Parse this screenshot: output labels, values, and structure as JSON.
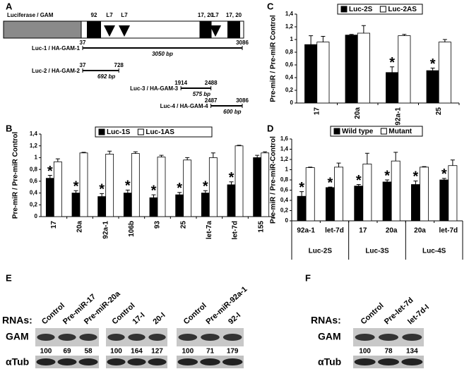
{
  "panel_labels": [
    "A",
    "B",
    "C",
    "D",
    "E",
    "F"
  ],
  "diagram": {
    "label": "Luciferase / GAM",
    "features": [
      "92",
      "L7",
      "L7",
      "17, 20",
      "L7",
      "17, 20"
    ],
    "constructs": [
      {
        "name": "Luc-1 / HA-GAM-1",
        "start": 37,
        "end": 3086,
        "length": "3050 bp"
      },
      {
        "name": "Luc-2 / HA-GAM-2",
        "start": 37,
        "end": 728,
        "length": "692 bp"
      },
      {
        "name": "Luc-3 / HA-GAM-3",
        "start": 1914,
        "end": 2488,
        "length": "575 bp"
      },
      {
        "name": "Luc-4 / HA-GAM-4",
        "start": 2487,
        "end": 3086,
        "length": "600 bp"
      }
    ]
  },
  "chart_data": [
    {
      "type": "bar",
      "y_label": "Pre-miR / Pre-miR Control",
      "categories": [
        "17",
        "20a",
        "92a-1",
        "106b",
        "93",
        "25",
        "let-7a",
        "let-7d",
        "155"
      ],
      "series": [
        {
          "name": "Luc-1S",
          "color": "#000000",
          "values": [
            0.65,
            0.4,
            0.34,
            0.4,
            0.32,
            0.37,
            0.4,
            0.54,
            1.0
          ],
          "errors": [
            0.05,
            0.04,
            0.05,
            0.05,
            0.05,
            0.04,
            0.04,
            0.05,
            0.04
          ],
          "annotations": [
            "*",
            "*",
            "*",
            "*",
            "*",
            "*",
            "*",
            "*",
            null
          ]
        },
        {
          "name": "Luc-1AS",
          "color": "#ffffff",
          "values": [
            0.93,
            1.08,
            1.06,
            1.07,
            1.01,
            0.96,
            1.0,
            1.2,
            1.08
          ],
          "errors": [
            0.05,
            0.01,
            0.05,
            0.03,
            0.03,
            0.04,
            0.08,
            0.01,
            0.02
          ]
        }
      ],
      "ylim": [
        0,
        1.4
      ],
      "yticks": [
        0,
        {
          "value": 0.2,
          "label": "0,2"
        },
        {
          "value": 0.4,
          "label": "0,4"
        },
        {
          "value": 0.6,
          "label": "0,6"
        },
        {
          "value": 0.8,
          "label": "0,8"
        },
        1,
        {
          "value": 1.2,
          "label": "1,2"
        },
        {
          "value": 1.4,
          "label": "1,4"
        }
      ]
    },
    {
      "type": "bar",
      "y_label": "Pre-miR / Pre-miR Control",
      "categories": [
        "17",
        "20a",
        "92a-1",
        "25"
      ],
      "series": [
        {
          "name": "Luc-2S",
          "color": "#000000",
          "values": [
            0.92,
            1.07,
            0.48,
            0.51
          ],
          "errors": [
            0.14,
            0.01,
            0.09,
            0.04
          ],
          "annotations": [
            null,
            null,
            "*",
            "*"
          ]
        },
        {
          "name": "Luc-2AS",
          "color": "#ffffff",
          "values": [
            0.96,
            1.1,
            1.06,
            0.96
          ],
          "errors": [
            0.09,
            0.12,
            0.02,
            0.04
          ]
        }
      ],
      "ylim": [
        0,
        1.4
      ],
      "yticks": [
        0,
        {
          "value": 0.2,
          "label": "0,2"
        },
        {
          "value": 0.4,
          "label": "0,4"
        },
        {
          "value": 0.6,
          "label": "0,6"
        },
        {
          "value": 0.8,
          "label": "0,8"
        },
        1,
        {
          "value": 1.2,
          "label": "1,2"
        },
        {
          "value": 1.4,
          "label": "1,4"
        }
      ]
    },
    {
      "type": "bar",
      "y_label": "Pre-miR / Pre-miR-Control",
      "categories": [
        "92a-1",
        "let-7d",
        "17",
        "20a",
        "20a",
        "let-7d"
      ],
      "group_labels": [
        "Luc-2S",
        "Luc-3S",
        "Luc-4S"
      ],
      "series": [
        {
          "name": "Wild type",
          "color": "#000000",
          "values": [
            0.48,
            0.65,
            0.68,
            0.76,
            0.71,
            0.8
          ],
          "errors": [
            0.09,
            0.01,
            0.03,
            0.04,
            0.07,
            0.03
          ],
          "annotations": [
            "*",
            "*",
            "*",
            "*",
            "*",
            "*"
          ]
        },
        {
          "name": "Mutant",
          "color": "#ffffff",
          "values": [
            1.04,
            1.05,
            1.11,
            1.17,
            1.05,
            1.08
          ],
          "errors": [
            0.01,
            0.08,
            0.21,
            0.17,
            0.01,
            0.11
          ]
        }
      ],
      "ylim": [
        0,
        1.6
      ],
      "yticks": [
        0,
        {
          "value": 0.2,
          "label": "0,2"
        },
        {
          "value": 0.4,
          "label": "0,4"
        },
        {
          "value": 0.6,
          "label": "0,6"
        },
        {
          "value": 0.8,
          "label": "0,8"
        },
        1,
        {
          "value": 1.2,
          "label": "1,2"
        },
        {
          "value": 1.4,
          "label": "1,4"
        },
        {
          "value": 1.6,
          "label": "1,6"
        }
      ]
    }
  ],
  "blots": [
    {
      "rna_label": "RNAs:",
      "rows": [
        "GAM",
        "αTub"
      ],
      "groups": [
        {
          "lanes": [
            "Control",
            "Pre-miR-17",
            "Pre-miR-20a"
          ],
          "values": [
            100,
            69,
            58
          ]
        },
        {
          "lanes": [
            "Control",
            "17-I",
            "20-I"
          ],
          "values": [
            100,
            164,
            127
          ]
        },
        {
          "lanes": [
            "Control",
            "Pre-miR-92a-1",
            "92-I"
          ],
          "values": [
            100,
            71,
            179
          ]
        }
      ]
    },
    {
      "rna_label": "RNAs:",
      "rows": [
        "GAM",
        "αTub"
      ],
      "groups": [
        {
          "lanes": [
            "Control",
            "Pre-let-7d",
            "let-7d-I"
          ],
          "values": [
            100,
            78,
            134
          ]
        }
      ]
    }
  ]
}
